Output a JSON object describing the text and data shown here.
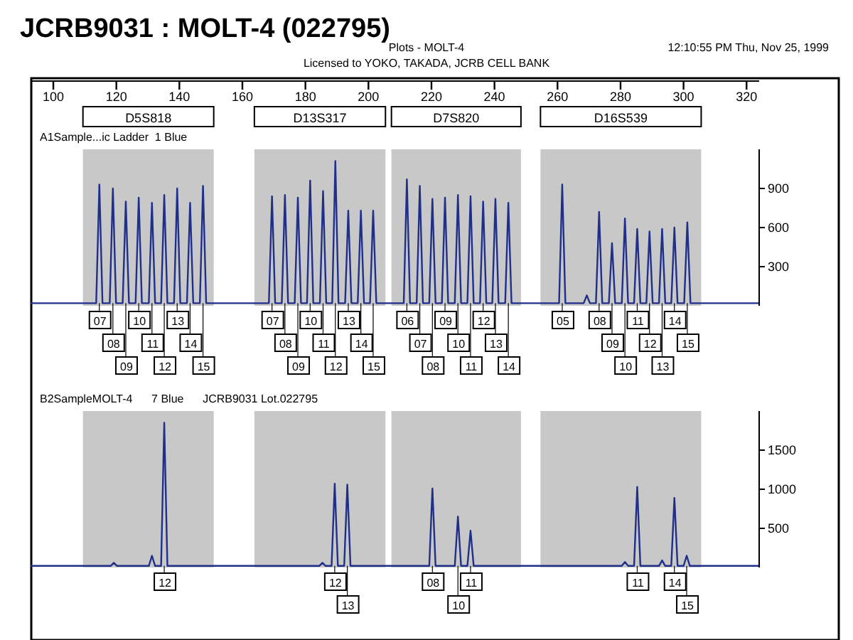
{
  "chart_data": [
    {
      "type": "line",
      "title": "JCRB9031 : MOLT-4 (022795)",
      "subtitle": "Plots - MOLT-4",
      "xlim": [
        93,
        324
      ],
      "xticks": [
        100,
        120,
        140,
        160,
        180,
        200,
        220,
        240,
        260,
        280,
        300,
        320
      ],
      "ylim": [
        0,
        1200
      ],
      "yticks": [
        300,
        600,
        900
      ],
      "bands": [
        {
          "axis": "x",
          "from": 109.4,
          "to": 150.9,
          "label": "D5S818",
          "color": "#c8c8c8"
        },
        {
          "axis": "x",
          "from": 163.8,
          "to": 205.4,
          "label": "D13S317",
          "color": "#c8c8c8"
        },
        {
          "axis": "x",
          "from": 207.3,
          "to": 248.4,
          "label": "D7S820",
          "color": "#c8c8c8"
        },
        {
          "axis": "x",
          "from": 254.6,
          "to": 305.6,
          "label": "D16S539",
          "color": "#c8c8c8"
        }
      ],
      "series": [
        {
          "color": "#1f2f8a",
          "x": [
            93,
            113.6,
            114.6,
            115.6,
            117.9,
            118.9,
            119.9,
            122,
            123,
            124,
            126.1,
            127.1,
            128.1,
            130.3,
            131.3,
            132.3,
            134.2,
            135.2,
            136.2,
            138.3,
            139.3,
            140.3,
            142.4,
            143.4,
            144.4,
            146.5,
            147.5,
            148.5,
            168.4,
            169.4,
            170.4,
            172.5,
            173.5,
            174.5,
            176.6,
            177.6,
            178.6,
            180.5,
            181.5,
            182.5,
            184.6,
            185.6,
            186.6,
            188.5,
            189.5,
            190.5,
            192.6,
            193.6,
            194.6,
            196.6,
            197.6,
            198.6,
            200.5,
            201.5,
            202.5,
            211.2,
            212.2,
            213.2,
            215.3,
            216.3,
            217.3,
            219.3,
            220.3,
            221.3,
            223.3,
            224.3,
            225.3,
            227.4,
            228.4,
            229.4,
            231.4,
            232.4,
            233.4,
            235.4,
            236.4,
            237.4,
            239.3,
            240.3,
            241.3,
            243.4,
            244.4,
            245.4,
            260.5,
            261.5,
            262.5,
            268.3,
            269.3,
            270.3,
            272.2,
            273.2,
            274.2,
            276.3,
            277.3,
            278.3,
            280.4,
            281.4,
            282.4,
            284.3,
            285.3,
            286.3,
            288.2,
            289.2,
            290.2,
            292.2,
            293.2,
            294.2,
            296.1,
            297.1,
            298.1,
            300.2,
            301.2,
            302.2,
            324
          ],
          "values": [
            20,
            20,
            930,
            20,
            20,
            900,
            20,
            20,
            800,
            20,
            20,
            830,
            20,
            20,
            790,
            20,
            20,
            850,
            20,
            20,
            900,
            20,
            20,
            790,
            20,
            20,
            920,
            20,
            20,
            840,
            20,
            20,
            850,
            20,
            20,
            830,
            20,
            20,
            960,
            20,
            20,
            880,
            20,
            20,
            1110,
            20,
            20,
            730,
            20,
            20,
            730,
            20,
            20,
            730,
            20,
            20,
            970,
            20,
            20,
            920,
            20,
            20,
            820,
            20,
            20,
            830,
            20,
            20,
            850,
            20,
            20,
            840,
            20,
            20,
            800,
            20,
            20,
            820,
            20,
            20,
            790,
            20,
            20,
            930,
            20,
            20,
            80,
            20,
            20,
            720,
            20,
            20,
            480,
            20,
            20,
            670,
            20,
            20,
            590,
            20,
            20,
            570,
            20,
            20,
            590,
            20,
            20,
            600,
            20,
            20,
            640,
            20,
            20
          ]
        }
      ],
      "annotations": [
        "Licensed to YOKO, TAKADA, JCRB CELL BANK",
        "12:10:55 PM Thu, Nov 25, 1999",
        "A1Sample...ic Ladder  1 Blue",
        {
          "text": "07",
          "x": 114.6,
          "y": 20
        },
        {
          "text": "08",
          "x": 118.9,
          "y": 20
        },
        {
          "text": "09",
          "x": 123,
          "y": 20
        },
        {
          "text": "10",
          "x": 127.1,
          "y": 20
        },
        {
          "text": "11",
          "x": 131.3,
          "y": 20
        },
        {
          "text": "12",
          "x": 135.2,
          "y": 20
        },
        {
          "text": "13",
          "x": 139.3,
          "y": 20
        },
        {
          "text": "14",
          "x": 143.4,
          "y": 20
        },
        {
          "text": "15",
          "x": 147.5,
          "y": 20
        },
        {
          "text": "07",
          "x": 169.4,
          "y": 20
        },
        {
          "text": "08",
          "x": 173.5,
          "y": 20
        },
        {
          "text": "09",
          "x": 177.6,
          "y": 20
        },
        {
          "text": "10",
          "x": 181.5,
          "y": 20
        },
        {
          "text": "11",
          "x": 185.6,
          "y": 20
        },
        {
          "text": "12",
          "x": 189.5,
          "y": 20
        },
        {
          "text": "13",
          "x": 193.6,
          "y": 20
        },
        {
          "text": "14",
          "x": 197.6,
          "y": 20
        },
        {
          "text": "15",
          "x": 201.5,
          "y": 20
        },
        {
          "text": "06",
          "x": 212.2,
          "y": 20
        },
        {
          "text": "07",
          "x": 216.3,
          "y": 20
        },
        {
          "text": "08",
          "x": 220.3,
          "y": 20
        },
        {
          "text": "09",
          "x": 224.3,
          "y": 20
        },
        {
          "text": "10",
          "x": 228.4,
          "y": 20
        },
        {
          "text": "11",
          "x": 232.4,
          "y": 20
        },
        {
          "text": "12",
          "x": 236.4,
          "y": 20
        },
        {
          "text": "13",
          "x": 240.3,
          "y": 20
        },
        {
          "text": "14",
          "x": 244.4,
          "y": 20
        },
        {
          "text": "05",
          "x": 261.5,
          "y": 20
        },
        {
          "text": "08",
          "x": 273.2,
          "y": 20
        },
        {
          "text": "09",
          "x": 277.3,
          "y": 20
        },
        {
          "text": "10",
          "x": 281.4,
          "y": 20
        },
        {
          "text": "11",
          "x": 285.3,
          "y": 20
        },
        {
          "text": "12",
          "x": 289.2,
          "y": 20
        },
        {
          "text": "13",
          "x": 293.2,
          "y": 20
        },
        {
          "text": "14",
          "x": 297.1,
          "y": 20
        },
        {
          "text": "15",
          "x": 301.2,
          "y": 20
        }
      ]
    },
    {
      "type": "line",
      "title": "B2SampleMOLT-4      7 Blue      JCRB9031 Lot.022795",
      "tick_labels": "y",
      "xlim": [
        93,
        324
      ],
      "ylim": [
        0,
        2000
      ],
      "yticks": [
        500,
        1000,
        1500
      ],
      "bands": [
        {
          "axis": "x",
          "from": 109.4,
          "to": 150.9,
          "color": "#c8c8c8"
        },
        {
          "axis": "x",
          "from": 163.8,
          "to": 205.4,
          "color": "#c8c8c8"
        },
        {
          "axis": "x",
          "from": 207.3,
          "to": 248.4,
          "color": "#c8c8c8"
        },
        {
          "axis": "x",
          "from": 254.6,
          "to": 305.6,
          "color": "#c8c8c8"
        }
      ],
      "series": [
        {
          "color": "#1f2f8a",
          "x": [
            93,
            118.2,
            119.2,
            120.2,
            130.3,
            131.3,
            132.3,
            134.2,
            135.2,
            136.2,
            184.4,
            185.4,
            186.4,
            188.3,
            189.3,
            190.3,
            192.3,
            193.3,
            194.3,
            219.3,
            220.3,
            221.3,
            227.4,
            228.4,
            229.4,
            231.4,
            232.4,
            233.4,
            280.4,
            281.4,
            282.4,
            284.3,
            285.3,
            286.3,
            292.2,
            293.2,
            294.2,
            296.1,
            297.1,
            298.1,
            300,
            301,
            302,
            324
          ],
          "values": [
            20,
            20,
            60,
            20,
            20,
            150,
            20,
            20,
            1850,
            20,
            20,
            60,
            20,
            20,
            1070,
            20,
            20,
            1060,
            20,
            20,
            1010,
            20,
            20,
            650,
            20,
            20,
            470,
            20,
            20,
            70,
            20,
            20,
            1030,
            20,
            20,
            90,
            20,
            20,
            890,
            20,
            20,
            150,
            20,
            20
          ]
        }
      ],
      "annotations": [
        {
          "text": "12",
          "x": 135.2,
          "y": 20
        },
        {
          "text": "12",
          "x": 189.3,
          "y": 20
        },
        {
          "text": "13",
          "x": 193.3,
          "y": 20
        },
        {
          "text": "08",
          "x": 220.3,
          "y": 20
        },
        {
          "text": "10",
          "x": 228.4,
          "y": 20
        },
        {
          "text": "11",
          "x": 232.4,
          "y": 20
        },
        {
          "text": "11",
          "x": 285.3,
          "y": 20
        },
        {
          "text": "14",
          "x": 297.1,
          "y": 20
        },
        {
          "text": "15",
          "x": 301,
          "y": 20
        }
      ]
    }
  ]
}
